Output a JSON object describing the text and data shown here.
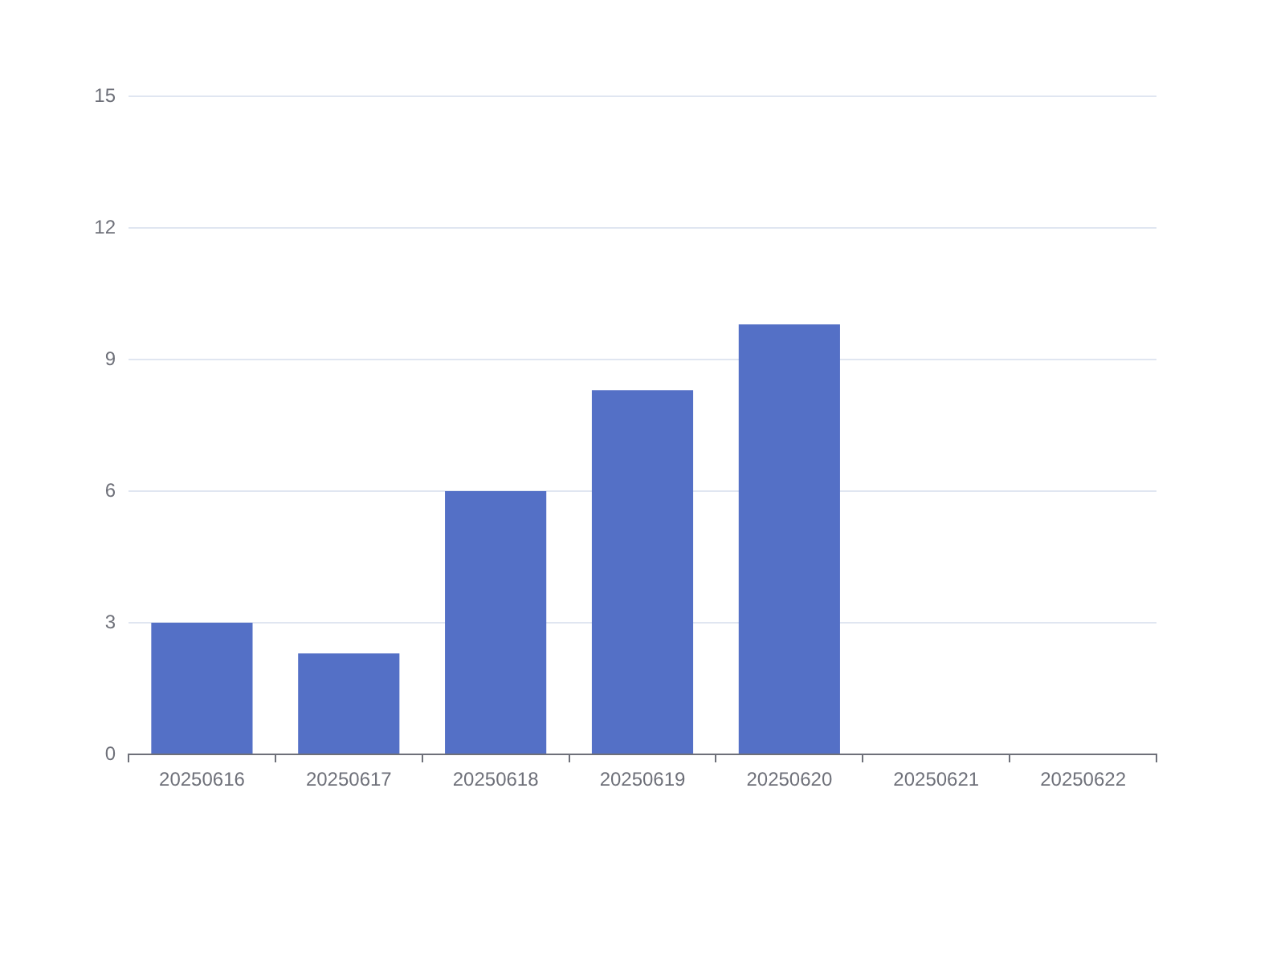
{
  "chart_data": {
    "type": "bar",
    "categories": [
      "20250616",
      "20250617",
      "20250618",
      "20250619",
      "20250620",
      "20250621",
      "20250622"
    ],
    "values": [
      3,
      2.3,
      6,
      8.3,
      9.8,
      0,
      0
    ],
    "color": "#5470c6",
    "ylim": [
      0,
      15
    ],
    "yticks": [
      0,
      3,
      6,
      9,
      12,
      15
    ],
    "grid": "y",
    "legend": false
  }
}
